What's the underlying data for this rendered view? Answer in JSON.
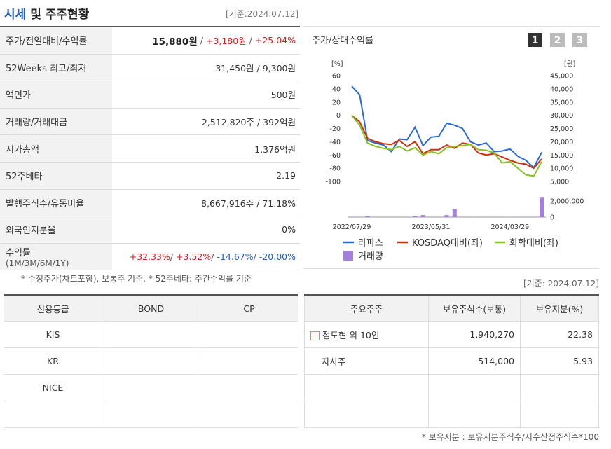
{
  "header": {
    "title_highlight": "시세",
    "title_rest": "및 주주현황",
    "date": "[기준:2024.07.12]"
  },
  "price_table": {
    "rows": [
      {
        "label": "주가/전일대비/수익률",
        "value_parts": [
          {
            "text": "15,880원",
            "color": "#222",
            "bold": true
          },
          {
            "text": " / ",
            "color": "#555"
          },
          {
            "text": "+3,180원",
            "color": "#d1201f"
          },
          {
            "text": " / ",
            "color": "#555"
          },
          {
            "text": "+25.04%",
            "color": "#d1201f"
          }
        ]
      },
      {
        "label": "52Weeks 최고/최저",
        "value": "31,450원 / 9,300원"
      },
      {
        "label": "액면가",
        "value": "500원"
      },
      {
        "label": "거래량/거래대금",
        "value": "2,512,820주 / 392억원"
      },
      {
        "label": "시가총액",
        "value": "1,376억원"
      },
      {
        "label": "52주베타",
        "value": "2.19"
      },
      {
        "label": "발행주식수/유동비율",
        "value": "8,667,916주 / 71.18%"
      },
      {
        "label": "외국인지분율",
        "value": "0%"
      },
      {
        "label": "수익률",
        "sublabel": "(1M/3M/6M/1Y)",
        "value_parts": [
          {
            "text": "+32.33%",
            "color": "#d1201f"
          },
          {
            "text": "/ ",
            "color": "#555"
          },
          {
            "text": "+3.52%",
            "color": "#d1201f"
          },
          {
            "text": "/ ",
            "color": "#555"
          },
          {
            "text": "-14.67%",
            "color": "#1f5fbf"
          },
          {
            "text": "/ ",
            "color": "#555"
          },
          {
            "text": "-20.00%",
            "color": "#1f5fbf"
          }
        ]
      }
    ],
    "note": "* 수정주가(차트포함), 보통주 기준, * 52주베타: 주간수익률 기준"
  },
  "chart_panel": {
    "title": "주가/상대수익률",
    "buttons": [
      "1",
      "2",
      "3"
    ],
    "date": "[기준: 2024.07.12]"
  },
  "chart_data": {
    "type": "line",
    "y_unit": "[%]",
    "y2_unit": "[원]",
    "categories": [
      "2022/07/29",
      null,
      null,
      null,
      null,
      null,
      null,
      null,
      null,
      null,
      "2023/05/31",
      null,
      null,
      null,
      null,
      null,
      null,
      null,
      null,
      null,
      "2024/03/29",
      null,
      null,
      null,
      null
    ],
    "series": [
      {
        "name": "라파스",
        "color": "#2a6bd1",
        "values": [
          44,
          31,
          -38,
          -42,
          -45,
          -55,
          -36,
          -37,
          -18,
          -46,
          -33,
          -32,
          -12,
          -15,
          -20,
          -40,
          -45,
          -42,
          -55,
          -54,
          -51,
          -62,
          -68,
          -79,
          -56
        ]
      },
      {
        "name": "KOSDAQ대비(좌)",
        "color": "#d0300f",
        "values": [
          0,
          -10,
          -35,
          -40,
          -43,
          -44,
          -38,
          -47,
          -40,
          -58,
          -52,
          -52,
          -45,
          -50,
          -42,
          -44,
          -57,
          -60,
          -58,
          -63,
          -68,
          -72,
          -74,
          -80,
          -66
        ]
      },
      {
        "name": "화학대비(좌)",
        "color": "#86c21f",
        "values": [
          0,
          -15,
          -42,
          -47,
          -50,
          -52,
          -47,
          -54,
          -49,
          -60,
          -55,
          -58,
          -49,
          -47,
          -46,
          -44,
          -52,
          -53,
          -57,
          -72,
          -70,
          -80,
          -90,
          -92,
          -70
        ]
      },
      {
        "name": "거래량",
        "color": "#a57fdc",
        "type": "bar",
        "axis": "volume",
        "values": [
          50000,
          30000,
          150000,
          30000,
          20000,
          20000,
          30000,
          20000,
          150000,
          250000,
          30000,
          30000,
          250000,
          1000000,
          30000,
          20000,
          20000,
          20000,
          30000,
          20000,
          20000,
          30000,
          30000,
          40000,
          2500000
        ]
      }
    ],
    "ylim": [
      -100,
      60
    ],
    "yticks": [
      60,
      40,
      20,
      0,
      -20,
      -40,
      -60,
      -80,
      -100
    ],
    "y2lim": [
      5000,
      45000
    ],
    "y2ticks": [
      {
        "value": 45000,
        "label": "45,000"
      },
      {
        "value": 40000,
        "label": "40,000"
      },
      {
        "value": 35000,
        "label": "35,000"
      },
      {
        "value": 30000,
        "label": "30,000"
      },
      {
        "value": 25000,
        "label": "25,000"
      },
      {
        "value": 20000,
        "label": "20,000"
      },
      {
        "value": 15000,
        "label": "15,000"
      },
      {
        "value": 10000,
        "label": "10,000"
      },
      {
        "value": 5000,
        "label": "5,000"
      }
    ],
    "volume_ylim": [
      0,
      2000000
    ],
    "volume_yticks": [
      {
        "value": 2000000,
        "label": "2,000,000"
      },
      0
    ],
    "grid": false
  },
  "credit_table": {
    "headers": [
      "신용등급",
      "BOND",
      "CP"
    ],
    "rows": [
      "KIS",
      "KR",
      "NICE"
    ]
  },
  "shareholder_table": {
    "headers": [
      "주요주주",
      "보유주식수(보통)",
      "보유지분(%)"
    ],
    "rows": [
      [
        "정도현 외 10인",
        "1,940,270",
        "22.38"
      ],
      [
        "자사주",
        "514,000",
        "5.93"
      ]
    ],
    "note": "* 보유지분 : 보유지분주식수/지수산정주식수*100"
  }
}
